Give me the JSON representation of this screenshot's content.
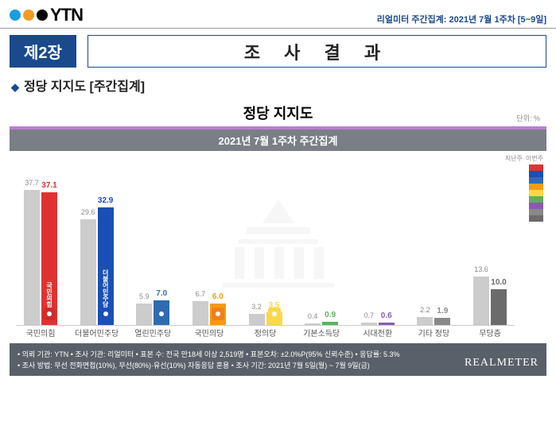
{
  "header": {
    "logo_text": "YTN",
    "dot_colors": [
      "#1a9ee0",
      "#f29c1f",
      "#000000"
    ],
    "subtitle": "리얼미터 주간집계: 2021년 7월 1주차 [5~9일]"
  },
  "chapter": {
    "badge": "제2장",
    "title": "조 사 결 과"
  },
  "section": {
    "title": "정당 지지도 [주간집계]"
  },
  "chart": {
    "title": "정당 지지도",
    "unit": "단위: %",
    "sub_header": "2021년 7월 1주차 주간집계",
    "ylim_max": 40,
    "legend": {
      "prev_label": "지난주",
      "curr_label": "이번주",
      "chips": [
        "#e03232",
        "#1a4fb5",
        "#2e6cb0",
        "#f39c12",
        "#f9d94a",
        "#5faf5d",
        "#8a5aaf",
        "#888888",
        "#6b6b6b"
      ]
    },
    "parties": [
      {
        "name": "국민의힘",
        "prev": 37.7,
        "curr": 37.1,
        "color": "#e03232",
        "badge": "#d12b2b",
        "vlabel": "국민의힘"
      },
      {
        "name": "더불어민주당",
        "prev": 29.6,
        "curr": 32.9,
        "color": "#1a4fb5",
        "badge": "#1a4fb5",
        "vlabel": "더불어민주당"
      },
      {
        "name": "열린민주당",
        "prev": 5.9,
        "curr": 7.0,
        "color": "#2e6cb0",
        "badge": "#2e6cb0"
      },
      {
        "name": "국민의당",
        "prev": 6.7,
        "curr": 6.0,
        "color": "#f39c12",
        "badge": "#f07f1a"
      },
      {
        "name": "정의당",
        "prev": 3.2,
        "curr": 3.5,
        "color": "#f9d94a",
        "badge": "#f9d94a"
      },
      {
        "name": "기본소득당",
        "prev": 0.4,
        "curr": 0.9,
        "color": "#5faf5d",
        "badge": null
      },
      {
        "name": "시대전환",
        "prev": 0.7,
        "curr": 0.6,
        "color": "#8a5aaf",
        "badge": null
      },
      {
        "name": "기타 정당",
        "prev": 2.2,
        "curr": 1.9,
        "color": "#888888",
        "badge": null
      },
      {
        "name": "무당층",
        "prev": 13.6,
        "curr": 10.0,
        "color": "#6b6b6b",
        "badge": null
      }
    ]
  },
  "footer": {
    "line1": "• 의뢰 기관: YTN • 조사 기관: 리얼미터 • 표본 수: 전국 만18세 이상 2,519명 • 표본오차: ±2.0%P(95% 신뢰수준) • 응답률: 5.3%",
    "line2": "• 조사 방법: 무선 전화면접(10%), 무선(80%)·유선(10%) 자동응답 혼용 • 조사 기간: 2021년 7월 5일(월) ~ 7월 9일(금)",
    "brand": "REALMETER"
  }
}
